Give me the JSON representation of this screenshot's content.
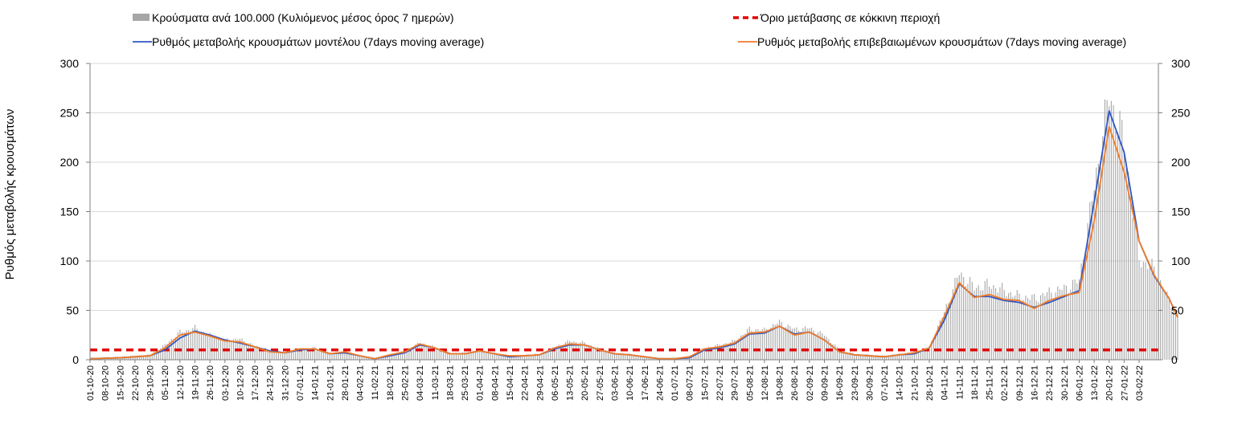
{
  "chart_data": {
    "type": "bar+line",
    "title": "",
    "ylabel": "Ρυθμός μεταβολής κρουσμάτων",
    "xlabel": "",
    "ylim": [
      0,
      300
    ],
    "yticks": [
      "0",
      "50",
      "100",
      "150",
      "200",
      "250",
      "300"
    ],
    "grid": "horizontal",
    "legend_position": "top",
    "legend": {
      "bars": "Κρούσματα ανά 100.000 (Κυλιόμενος μέσος όρος 7 ημερών)",
      "threshold": "Όριο μετάβασης σε κόκκινη περιοχή",
      "model": "Ρυθμός μεταβολής κρουσμάτων μοντέλου (7days moving average)",
      "confirmed": "Ρυθμός μεταβολής επιβεβαιωμένων κρουσμάτων (7days moving average)"
    },
    "colors": {
      "bars": "#a6a6a6",
      "threshold": "#e00000",
      "model": "#2f55c4",
      "confirmed": "#f07c28",
      "grid": "#d9d9d9",
      "axis": "#7f7f7f"
    },
    "x_labels": [
      "01-10-20",
      "08-10-20",
      "15-10-20",
      "22-10-20",
      "29-10-20",
      "05-11-20",
      "12-11-20",
      "19-11-20",
      "26-11-20",
      "03-12-20",
      "10-12-20",
      "17-12-20",
      "24-12-20",
      "31-12-20",
      "07-01-21",
      "14-01-21",
      "21-01-21",
      "28-01-21",
      "04-02-21",
      "11-02-21",
      "18-02-21",
      "25-02-21",
      "04-03-21",
      "11-03-21",
      "18-03-21",
      "25-03-21",
      "01-04-21",
      "08-04-21",
      "15-04-21",
      "22-04-21",
      "29-04-21",
      "06-05-21",
      "13-05-21",
      "20-05-21",
      "27-05-21",
      "03-06-21",
      "10-06-21",
      "17-06-21",
      "24-06-21",
      "01-07-21",
      "08-07-21",
      "15-07-21",
      "22-07-21",
      "29-07-21",
      "05-08-21",
      "12-08-21",
      "19-08-21",
      "26-08-21",
      "02-09-21",
      "09-09-21",
      "16-09-21",
      "23-09-21",
      "30-09-21",
      "07-10-21",
      "14-10-21",
      "21-10-21",
      "28-10-21",
      "04-11-21",
      "11-11-21",
      "18-11-21",
      "25-11-21",
      "02-12-21",
      "09-12-21",
      "16-12-21",
      "23-12-21",
      "30-12-21",
      "06-01-22",
      "13-01-22",
      "20-01-22",
      "27-01-22",
      "03-02-22"
    ],
    "threshold": 10,
    "x_days_end": 499,
    "series": [
      {
        "name": "Κρούσματα ανά 100.000 (Κυλιόμενος μέσος όρος 7 ημερών)",
        "kind": "bar",
        "points": [
          [
            0,
            2
          ],
          [
            14,
            3
          ],
          [
            28,
            5
          ],
          [
            35,
            15
          ],
          [
            42,
            28
          ],
          [
            49,
            32
          ],
          [
            56,
            25
          ],
          [
            63,
            20
          ],
          [
            70,
            21
          ],
          [
            77,
            14
          ],
          [
            84,
            9
          ],
          [
            91,
            7
          ],
          [
            98,
            11
          ],
          [
            105,
            12
          ],
          [
            112,
            7
          ],
          [
            119,
            8
          ],
          [
            126,
            4
          ],
          [
            133,
            1
          ],
          [
            140,
            5
          ],
          [
            147,
            9
          ],
          [
            154,
            17
          ],
          [
            161,
            13
          ],
          [
            168,
            7
          ],
          [
            175,
            7
          ],
          [
            182,
            10
          ],
          [
            189,
            7
          ],
          [
            196,
            4
          ],
          [
            203,
            5
          ],
          [
            210,
            6
          ],
          [
            217,
            13
          ],
          [
            224,
            19
          ],
          [
            231,
            17
          ],
          [
            238,
            11
          ],
          [
            245,
            7
          ],
          [
            252,
            6
          ],
          [
            259,
            3
          ],
          [
            266,
            2
          ],
          [
            273,
            2
          ],
          [
            280,
            3
          ],
          [
            287,
            12
          ],
          [
            294,
            15
          ],
          [
            301,
            19
          ],
          [
            308,
            31
          ],
          [
            315,
            30
          ],
          [
            322,
            38
          ],
          [
            329,
            31
          ],
          [
            336,
            32
          ],
          [
            343,
            25
          ],
          [
            350,
            10
          ],
          [
            357,
            6
          ],
          [
            364,
            5
          ],
          [
            371,
            4
          ],
          [
            378,
            6
          ],
          [
            385,
            8
          ],
          [
            392,
            13
          ],
          [
            399,
            48
          ],
          [
            406,
            88
          ],
          [
            413,
            73
          ],
          [
            420,
            76
          ],
          [
            427,
            70
          ],
          [
            434,
            64
          ],
          [
            441,
            62
          ],
          [
            448,
            68
          ],
          [
            455,
            72
          ],
          [
            462,
            80
          ],
          [
            469,
            175
          ],
          [
            476,
            268
          ],
          [
            483,
            220
          ],
          [
            490,
            102
          ],
          [
            497,
            92
          ],
          [
            504,
            60
          ],
          [
            508,
            46
          ]
        ]
      },
      {
        "name": "Ρυθμός μεταβολής κρουσμάτων μοντέλου (7days moving average)",
        "kind": "line",
        "points": [
          [
            0,
            1
          ],
          [
            14,
            2
          ],
          [
            28,
            4
          ],
          [
            35,
            10
          ],
          [
            42,
            22
          ],
          [
            49,
            29
          ],
          [
            56,
            25
          ],
          [
            63,
            20
          ],
          [
            70,
            17
          ],
          [
            77,
            13
          ],
          [
            84,
            9
          ],
          [
            91,
            7
          ],
          [
            98,
            10
          ],
          [
            105,
            11
          ],
          [
            112,
            6
          ],
          [
            119,
            7
          ],
          [
            126,
            4
          ],
          [
            133,
            1
          ],
          [
            140,
            4
          ],
          [
            147,
            7
          ],
          [
            154,
            15
          ],
          [
            161,
            12
          ],
          [
            168,
            6
          ],
          [
            175,
            6
          ],
          [
            182,
            9
          ],
          [
            189,
            6
          ],
          [
            196,
            3
          ],
          [
            203,
            4
          ],
          [
            210,
            5
          ],
          [
            217,
            11
          ],
          [
            224,
            15
          ],
          [
            231,
            15
          ],
          [
            238,
            10
          ],
          [
            245,
            6
          ],
          [
            252,
            5
          ],
          [
            259,
            3
          ],
          [
            266,
            1
          ],
          [
            273,
            1
          ],
          [
            280,
            2
          ],
          [
            287,
            10
          ],
          [
            294,
            12
          ],
          [
            301,
            16
          ],
          [
            308,
            26
          ],
          [
            315,
            27
          ],
          [
            322,
            34
          ],
          [
            329,
            26
          ],
          [
            336,
            28
          ],
          [
            343,
            20
          ],
          [
            350,
            8
          ],
          [
            357,
            5
          ],
          [
            364,
            4
          ],
          [
            371,
            3
          ],
          [
            378,
            5
          ],
          [
            385,
            6
          ],
          [
            392,
            12
          ],
          [
            399,
            40
          ],
          [
            406,
            77
          ],
          [
            413,
            64
          ],
          [
            420,
            64
          ],
          [
            427,
            60
          ],
          [
            434,
            58
          ],
          [
            441,
            53
          ],
          [
            448,
            58
          ],
          [
            455,
            64
          ],
          [
            462,
            70
          ],
          [
            469,
            160
          ],
          [
            476,
            252
          ],
          [
            483,
            210
          ],
          [
            490,
            120
          ],
          [
            497,
            85
          ],
          [
            504,
            62
          ],
          [
            508,
            43
          ]
        ]
      },
      {
        "name": "Ρυθμός μεταβολής επιβεβαιωμένων κρουσμάτων (7days moving average)",
        "kind": "line",
        "points": [
          [
            0,
            1
          ],
          [
            14,
            2
          ],
          [
            28,
            4
          ],
          [
            35,
            12
          ],
          [
            42,
            25
          ],
          [
            49,
            28
          ],
          [
            56,
            24
          ],
          [
            63,
            19
          ],
          [
            70,
            18
          ],
          [
            77,
            13
          ],
          [
            84,
            8
          ],
          [
            91,
            7
          ],
          [
            98,
            11
          ],
          [
            105,
            11
          ],
          [
            112,
            6
          ],
          [
            119,
            8
          ],
          [
            126,
            4
          ],
          [
            133,
            1
          ],
          [
            140,
            5
          ],
          [
            147,
            8
          ],
          [
            154,
            16
          ],
          [
            161,
            12
          ],
          [
            168,
            6
          ],
          [
            175,
            6
          ],
          [
            182,
            9
          ],
          [
            189,
            6
          ],
          [
            196,
            4
          ],
          [
            203,
            4
          ],
          [
            210,
            5
          ],
          [
            217,
            12
          ],
          [
            224,
            16
          ],
          [
            231,
            15
          ],
          [
            238,
            10
          ],
          [
            245,
            6
          ],
          [
            252,
            5
          ],
          [
            259,
            3
          ],
          [
            266,
            1
          ],
          [
            273,
            1
          ],
          [
            280,
            3
          ],
          [
            287,
            11
          ],
          [
            294,
            13
          ],
          [
            301,
            17
          ],
          [
            308,
            27
          ],
          [
            315,
            28
          ],
          [
            322,
            34
          ],
          [
            329,
            25
          ],
          [
            336,
            28
          ],
          [
            343,
            20
          ],
          [
            350,
            8
          ],
          [
            357,
            5
          ],
          [
            364,
            4
          ],
          [
            371,
            3
          ],
          [
            378,
            5
          ],
          [
            385,
            7
          ],
          [
            392,
            12
          ],
          [
            399,
            44
          ],
          [
            406,
            78
          ],
          [
            413,
            63
          ],
          [
            420,
            66
          ],
          [
            427,
            61
          ],
          [
            434,
            60
          ],
          [
            441,
            52
          ],
          [
            448,
            60
          ],
          [
            455,
            65
          ],
          [
            462,
            68
          ],
          [
            469,
            140
          ],
          [
            476,
            236
          ],
          [
            483,
            190
          ],
          [
            490,
            120
          ],
          [
            497,
            86
          ],
          [
            504,
            62
          ],
          [
            508,
            43
          ]
        ]
      }
    ]
  }
}
